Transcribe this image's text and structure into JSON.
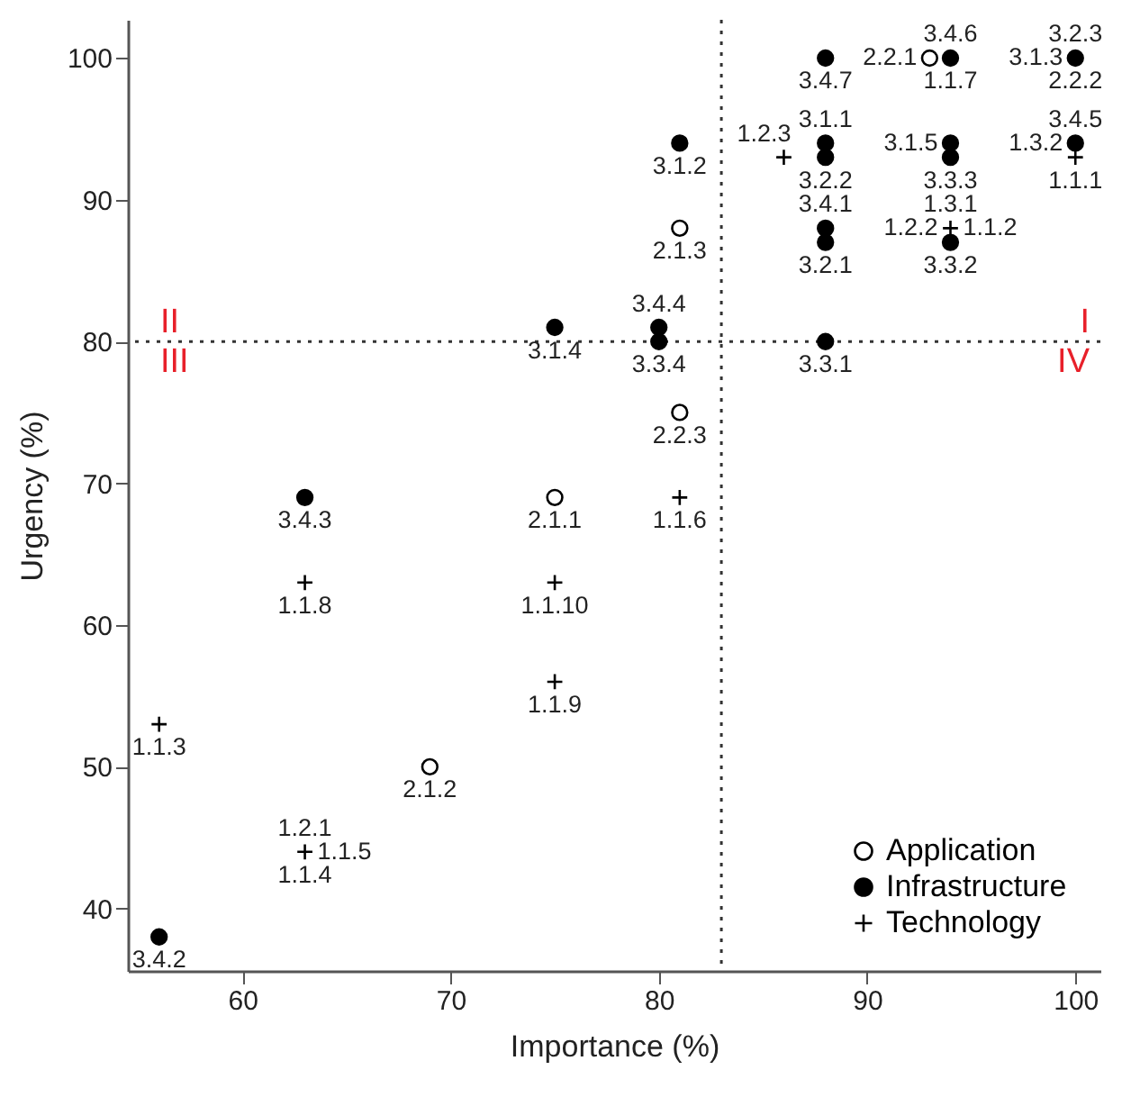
{
  "chart_data": {
    "type": "scatter",
    "xlabel": "Importance (%)",
    "ylabel": "Urgency (%)",
    "xlim": [
      54.5,
      101.2
    ],
    "ylim": [
      35.6,
      102.7
    ],
    "xticks": [
      60,
      70,
      80,
      90,
      100
    ],
    "yticks": [
      40,
      50,
      60,
      70,
      80,
      90,
      100
    ],
    "grid": false,
    "legend": "bottom right",
    "series": [
      {
        "name": "Application",
        "color": "#ffffff",
        "marker": "circle",
        "x": [
          93,
          81,
          81,
          75,
          69
        ],
        "values": [
          100,
          88,
          75,
          69,
          50
        ]
      },
      {
        "name": "Infrastructure",
        "color": "#000000",
        "marker": "circle",
        "x": [
          88,
          94,
          100,
          81,
          88,
          88,
          94,
          94,
          100,
          88,
          88,
          94,
          80,
          80,
          75,
          88,
          63,
          56
        ],
        "values": [
          100,
          100,
          100,
          94,
          94,
          93,
          94,
          93,
          94,
          88,
          87,
          87,
          81,
          80,
          81,
          80,
          69,
          38
        ]
      },
      {
        "name": "Technology",
        "color": "#000000",
        "marker": "cross",
        "x": [
          86,
          100,
          94,
          81,
          75,
          75,
          63,
          56,
          63
        ],
        "values": [
          93,
          93,
          88,
          69,
          63,
          56,
          63,
          53,
          44
        ]
      }
    ],
    "ref_lines": [
      {
        "axis": "x",
        "value": 83,
        "line_style": "dotted"
      },
      {
        "axis": "y",
        "value": 80,
        "line_style": "dotted"
      }
    ],
    "annotations": [
      "I",
      "II",
      "III",
      "IV",
      {
        "text": "3.4.7",
        "x": 88,
        "y": 100
      },
      {
        "text": "2.2.1",
        "x": 93,
        "y": 100
      },
      {
        "text": "3.4.6",
        "x": 94,
        "y": 100
      },
      {
        "text": "1.1.7",
        "x": 94,
        "y": 100
      },
      {
        "text": "3.2.3",
        "x": 100,
        "y": 100
      },
      {
        "text": "3.1.3",
        "x": 100,
        "y": 100
      },
      {
        "text": "2.2.2",
        "x": 100,
        "y": 100
      },
      {
        "text": "3.1.1",
        "x": 88,
        "y": 94
      },
      {
        "text": "3.2.2",
        "x": 88,
        "y": 93
      },
      {
        "text": "1.2.3",
        "x": 86,
        "y": 93
      },
      {
        "text": "3.1.2",
        "x": 81,
        "y": 94
      },
      {
        "text": "3.1.5",
        "x": 94,
        "y": 94
      },
      {
        "text": "3.3.3",
        "x": 94,
        "y": 93
      },
      {
        "text": "3.4.5",
        "x": 100,
        "y": 94
      },
      {
        "text": "1.3.2",
        "x": 100,
        "y": 94
      },
      {
        "text": "1.1.1",
        "x": 100,
        "y": 93
      },
      {
        "text": "2.1.3",
        "x": 81,
        "y": 88
      },
      {
        "text": "3.4.1",
        "x": 88,
        "y": 88
      },
      {
        "text": "3.2.1",
        "x": 88,
        "y": 87
      },
      {
        "text": "1.3.1",
        "x": 94,
        "y": 88
      },
      {
        "text": "1.2.2",
        "x": 94,
        "y": 88
      },
      {
        "text": "1.1.2",
        "x": 94,
        "y": 88
      },
      {
        "text": "3.3.2",
        "x": 94,
        "y": 87
      },
      {
        "text": "3.4.4",
        "x": 80,
        "y": 81
      },
      {
        "text": "3.3.4",
        "x": 80,
        "y": 80
      },
      {
        "text": "3.1.4",
        "x": 75,
        "y": 81
      },
      {
        "text": "3.3.1",
        "x": 88,
        "y": 80
      },
      {
        "text": "2.2.3",
        "x": 81,
        "y": 75
      },
      {
        "text": "3.4.3",
        "x": 63,
        "y": 69
      },
      {
        "text": "2.1.1",
        "x": 75,
        "y": 69
      },
      {
        "text": "1.1.6",
        "x": 81,
        "y": 69
      },
      {
        "text": "1.1.8",
        "x": 63,
        "y": 63
      },
      {
        "text": "1.1.10",
        "x": 75,
        "y": 63
      },
      {
        "text": "1.1.9",
        "x": 75,
        "y": 56
      },
      {
        "text": "1.1.3",
        "x": 56,
        "y": 53
      },
      {
        "text": "2.1.2",
        "x": 69,
        "y": 50
      },
      {
        "text": "1.2.1",
        "x": 63,
        "y": 44
      },
      {
        "text": "1.1.5",
        "x": 63,
        "y": 44
      },
      {
        "text": "1.1.4",
        "x": 63,
        "y": 44
      },
      {
        "text": "3.4.2",
        "x": 56,
        "y": 38
      }
    ]
  }
}
